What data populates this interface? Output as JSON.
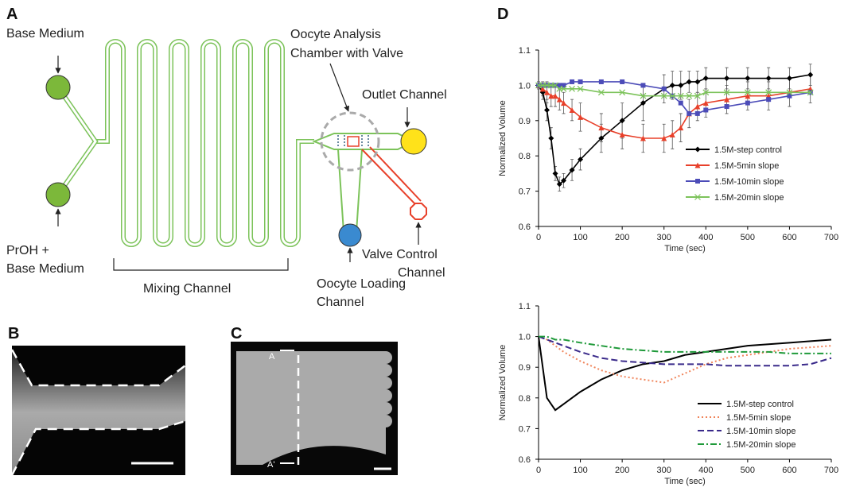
{
  "panels": [
    {
      "label": "A",
      "texts": [
        [
          "Base Medium"
        ],
        [
          "PrOH +",
          "Base Medium"
        ],
        [
          "Mixing Channel"
        ],
        [
          "Oocyte Analysis",
          "Chamber with Valve"
        ],
        [
          "Outlet Channel"
        ],
        [
          "Valve Control",
          "Channel"
        ],
        [
          "Oocyte Loading",
          "Channel"
        ]
      ]
    },
    {
      "label": "B"
    },
    {
      "label": "C",
      "texts": [
        [
          "A"
        ],
        [
          "A'"
        ]
      ]
    },
    {
      "label": "D"
    }
  ],
  "chart_data": [
    {
      "type": "line",
      "xlabel": "Time (sec)",
      "ylabel": "Normalized Volume",
      "xlim": [
        0,
        700
      ],
      "xticks": [
        0,
        100,
        200,
        300,
        400,
        500,
        600,
        700
      ],
      "ylim": [
        0.6,
        1.1
      ],
      "yticks": [
        0.6,
        0.7,
        0.8,
        0.9,
        {
          "value": 1,
          "label": "1.0"
        },
        1.1
      ],
      "legend": "center-right",
      "x": [
        0,
        10,
        20,
        30,
        40,
        50,
        60,
        80,
        100,
        150,
        200,
        250,
        300,
        320,
        340,
        360,
        380,
        400,
        450,
        500,
        550,
        600,
        650
      ],
      "series": [
        {
          "name": "1.5M-step control",
          "color": "#000000",
          "marker": "diamond",
          "dash": "solid",
          "values": [
            1.0,
            0.98,
            0.93,
            0.85,
            0.75,
            0.72,
            0.73,
            0.76,
            0.79,
            0.85,
            0.9,
            0.95,
            0.99,
            1.0,
            1.0,
            1.01,
            1.01,
            1.02,
            1.02,
            1.02,
            1.02,
            1.02,
            1.03
          ],
          "errors": [
            0.01,
            0.02,
            0.03,
            0.03,
            0.02,
            0.02,
            0.02,
            0.03,
            0.03,
            0.04,
            0.05,
            0.05,
            0.04,
            0.04,
            0.04,
            0.03,
            0.03,
            0.03,
            0.03,
            0.03,
            0.03,
            0.03,
            0.03
          ]
        },
        {
          "name": "1.5M-5min slope",
          "color": "#e8402a",
          "marker": "triangle",
          "dash": "solid",
          "values": [
            1.0,
            0.99,
            0.98,
            0.97,
            0.97,
            0.96,
            0.95,
            0.93,
            0.91,
            0.88,
            0.86,
            0.85,
            0.85,
            0.86,
            0.88,
            0.92,
            0.94,
            0.95,
            0.96,
            0.97,
            0.97,
            0.98,
            0.99
          ],
          "errors": [
            0.01,
            0.02,
            0.03,
            0.03,
            0.03,
            0.03,
            0.03,
            0.03,
            0.04,
            0.04,
            0.04,
            0.04,
            0.04,
            0.04,
            0.04,
            0.04,
            0.04,
            0.04,
            0.04,
            0.04,
            0.04,
            0.04,
            0.04
          ]
        },
        {
          "name": "1.5M-10min slope",
          "color": "#4c4cb8",
          "marker": "square",
          "dash": "solid",
          "values": [
            1.0,
            1.0,
            1.0,
            1.0,
            1.0,
            1.0,
            1.0,
            1.01,
            1.01,
            1.01,
            1.01,
            1.0,
            0.99,
            0.97,
            0.95,
            0.92,
            0.92,
            0.93,
            0.94,
            0.95,
            0.96,
            0.97,
            0.98
          ]
        },
        {
          "name": "1.5M-20min slope",
          "color": "#7cc35a",
          "marker": "x",
          "dash": "solid",
          "values": [
            1.0,
            1.0,
            1.0,
            1.0,
            1.0,
            0.99,
            0.99,
            0.99,
            0.99,
            0.98,
            0.98,
            0.97,
            0.97,
            0.97,
            0.97,
            0.97,
            0.97,
            0.98,
            0.98,
            0.98,
            0.98,
            0.98,
            0.98
          ]
        }
      ]
    },
    {
      "type": "line",
      "xlabel": "Time (sec)",
      "ylabel": "Normalized Volume",
      "xlim": [
        0,
        700
      ],
      "xticks": [
        0,
        100,
        200,
        300,
        400,
        500,
        600,
        700
      ],
      "ylim": [
        0.6,
        1.1
      ],
      "yticks": [
        0.6,
        0.7,
        0.8,
        0.9,
        {
          "value": 1,
          "label": "1.0"
        },
        1.1
      ],
      "legend": "lower-right",
      "x": [
        0,
        20,
        40,
        60,
        100,
        150,
        200,
        250,
        300,
        350,
        400,
        450,
        500,
        550,
        600,
        650,
        700
      ],
      "series": [
        {
          "name": "1.5M-step control",
          "color": "#000000",
          "dash": "solid",
          "values": [
            1.0,
            0.8,
            0.76,
            0.78,
            0.82,
            0.86,
            0.89,
            0.91,
            0.92,
            0.94,
            0.95,
            0.96,
            0.97,
            0.975,
            0.98,
            0.985,
            0.99
          ]
        },
        {
          "name": "1.5M-5min slope",
          "color": "#f0845a",
          "dash": "dotted",
          "values": [
            1.0,
            0.99,
            0.97,
            0.95,
            0.92,
            0.89,
            0.87,
            0.86,
            0.85,
            0.88,
            0.91,
            0.93,
            0.94,
            0.95,
            0.96,
            0.965,
            0.97
          ]
        },
        {
          "name": "1.5M-10min slope",
          "color": "#3a2a8a",
          "dash": "dashed",
          "values": [
            1.0,
            0.99,
            0.98,
            0.97,
            0.95,
            0.93,
            0.92,
            0.915,
            0.91,
            0.91,
            0.91,
            0.905,
            0.905,
            0.905,
            0.905,
            0.91,
            0.93
          ]
        },
        {
          "name": "1.5M-20min slope",
          "color": "#1f9a3a",
          "dash": "dashdot",
          "values": [
            1.0,
            1.0,
            0.99,
            0.99,
            0.98,
            0.97,
            0.96,
            0.955,
            0.95,
            0.95,
            0.95,
            0.95,
            0.95,
            0.95,
            0.945,
            0.945,
            0.945
          ]
        }
      ]
    }
  ]
}
